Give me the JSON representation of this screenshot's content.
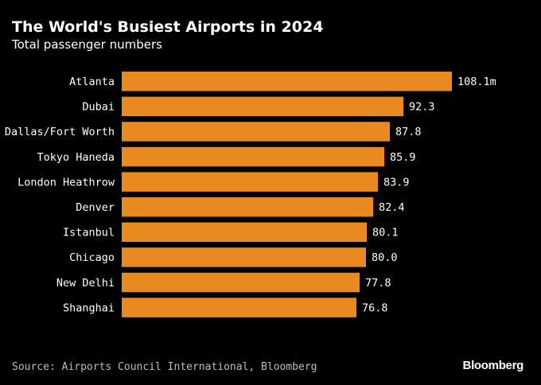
{
  "chart_data": {
    "type": "bar",
    "orientation": "horizontal",
    "title": "The World's Busiest Airports in 2024",
    "subtitle": "Total passenger numbers",
    "categories": [
      "Atlanta",
      "Dubai",
      "Dallas/Fort Worth",
      "Tokyo Haneda",
      "London Heathrow",
      "Denver",
      "Istanbul",
      "Chicago",
      "New Delhi",
      "Shanghai"
    ],
    "values": [
      108.1,
      92.3,
      87.8,
      85.9,
      83.9,
      82.4,
      80.1,
      80.0,
      77.8,
      76.8
    ],
    "value_labels": [
      "108.1m",
      "92.3",
      "87.8",
      "85.9",
      "83.9",
      "82.4",
      "80.1",
      "80.0",
      "77.8",
      "76.8"
    ],
    "xlim": [
      0,
      108.1
    ],
    "unit": "m",
    "xlabel": "",
    "ylabel": "",
    "grid": false,
    "legend": "none",
    "bar_color": "#e88a1f",
    "label_color": "#ffffff",
    "background": "#000000"
  },
  "footer": {
    "source": "Source: Airports Council International, Bloomberg",
    "brand": "Bloomberg"
  }
}
